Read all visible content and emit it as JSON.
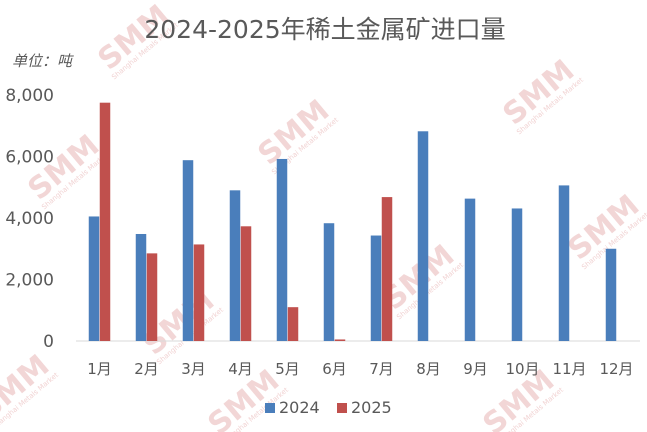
{
  "chart_data": {
    "type": "bar",
    "title": "2024-2025年稀土金属矿进口量",
    "unit_label": "单位：吨",
    "categories": [
      "1月",
      "2月",
      "3月",
      "4月",
      "5月",
      "6月",
      "7月",
      "8月",
      "9月",
      "10月",
      "11月",
      "12月"
    ],
    "series": [
      {
        "name": "2024",
        "color": "#4a7ebb",
        "values": [
          4050,
          3480,
          5880,
          4900,
          5920,
          3830,
          3430,
          6820,
          4630,
          4310,
          5060,
          3000
        ]
      },
      {
        "name": "2025",
        "color": "#c0504d",
        "values": [
          7750,
          2850,
          3140,
          3730,
          1100,
          50,
          4680,
          null,
          null,
          null,
          null,
          null
        ]
      }
    ],
    "yticks": [
      "0",
      "2,000",
      "4,000",
      "6,000",
      "8,000"
    ],
    "ylim": [
      0,
      8000
    ],
    "legend_position": "bottom",
    "grid": false
  },
  "watermark": {
    "brand": "SMM",
    "tagline": "Shanghai Metals Market"
  }
}
